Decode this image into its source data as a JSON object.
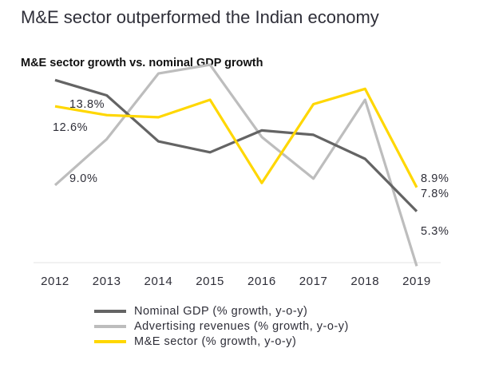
{
  "title": "M&E sector outperformed the Indian economy",
  "subtitle": "M&E sector growth vs. nominal GDP growth",
  "chart_data": {
    "type": "line",
    "x": [
      "2012",
      "2013",
      "2014",
      "2015",
      "2016",
      "2017",
      "2018",
      "2019"
    ],
    "ylim": [
      4,
      16
    ],
    "grid": false,
    "legend_position": "bottom",
    "series": [
      {
        "name": "Nominal GDP (% growth, y-o-y)",
        "color": "#646464",
        "values": [
          13.8,
          13.1,
          11.0,
          10.5,
          11.5,
          11.3,
          10.2,
          7.8
        ],
        "labels": [
          {
            "index": 0,
            "text": "13.8%"
          },
          {
            "index": 7,
            "text": "7.8%"
          }
        ]
      },
      {
        "name": "Advertising revenues (% growth, y-o-y)",
        "color": "#bdbdbd",
        "values": [
          9.0,
          11.1,
          14.1,
          14.5,
          11.2,
          9.3,
          12.9,
          5.3
        ],
        "labels": [
          {
            "index": 0,
            "text": "9.0%"
          },
          {
            "index": 7,
            "text": "5.3%"
          }
        ]
      },
      {
        "name": "M&E sector (% growth, y-o-y)",
        "color": "#ffd700",
        "values": [
          12.6,
          12.2,
          12.1,
          12.9,
          9.1,
          12.7,
          13.4,
          8.9
        ],
        "labels": [
          {
            "index": 0,
            "text": "12.6%"
          },
          {
            "index": 7,
            "text": "8.9%"
          }
        ]
      }
    ]
  }
}
